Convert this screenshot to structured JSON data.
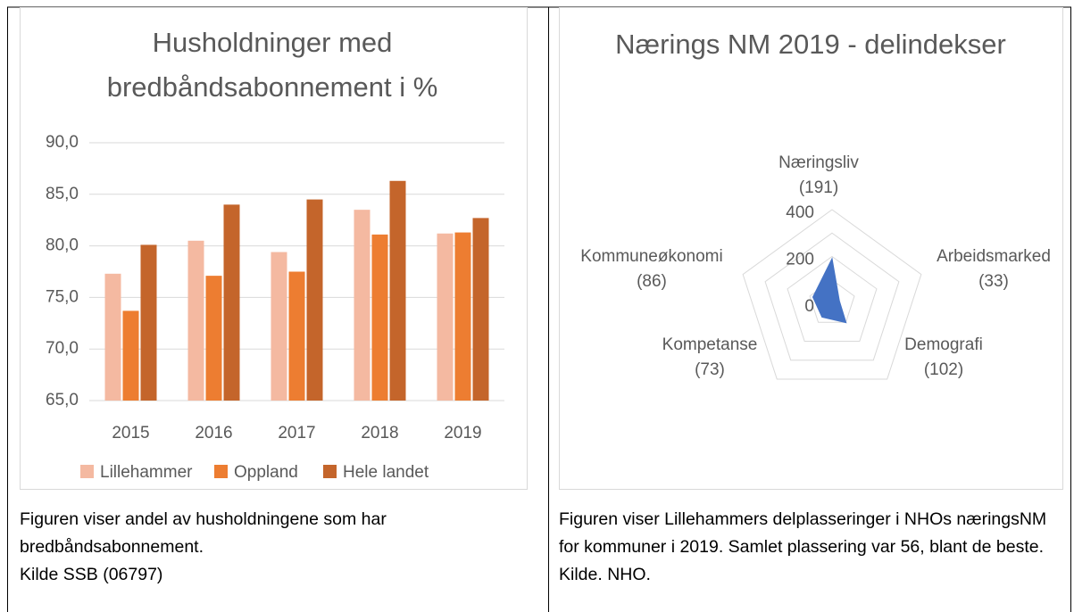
{
  "chart_data": [
    {
      "type": "bar",
      "title": "Husholdninger med bredbåndsabonnement i %",
      "categories": [
        "2015",
        "2016",
        "2017",
        "2018",
        "2019"
      ],
      "series": [
        {
          "name": "Lillehammer",
          "color": "#f4b9a1",
          "values": [
            77.3,
            80.5,
            79.4,
            83.5,
            81.2
          ]
        },
        {
          "name": "Oppland",
          "color": "#ed7d31",
          "values": [
            73.7,
            77.1,
            77.5,
            81.1,
            81.3
          ]
        },
        {
          "name": "Hele landet",
          "color": "#c4652b",
          "values": [
            80.1,
            84.0,
            84.5,
            86.3,
            82.7
          ]
        }
      ],
      "ylim": [
        65,
        90
      ],
      "yticks": [
        {
          "value": 65,
          "label": "65,0"
        },
        {
          "value": 70,
          "label": "70,0"
        },
        {
          "value": 75,
          "label": "75,0"
        },
        {
          "value": 80,
          "label": "80,0"
        },
        {
          "value": 85,
          "label": "85,0"
        },
        {
          "value": 90,
          "label": "90,0"
        }
      ],
      "grid": true,
      "legend": "bottom"
    },
    {
      "type": "radar",
      "title": "Nærings NM 2019 - delindekser",
      "categories": [
        "Næringsliv",
        "Arbeidsmarked",
        "Demografi",
        "Kompetanse",
        "Kommuneøkonomi"
      ],
      "values": [
        191,
        33,
        102,
        73,
        86
      ],
      "value_labels": [
        "(191)",
        "(33)",
        "(102)",
        "(73)",
        "(86)"
      ],
      "color": "#4472c4",
      "rlim": [
        0,
        400
      ],
      "rticks": [
        0,
        200,
        400
      ],
      "minor_rticks": [
        100,
        300
      ],
      "grid": true
    }
  ],
  "captions": [
    {
      "text": "Figuren viser andel av husholdningene som har bredbåndsabonnement.",
      "source": "Kilde SSB (06797)"
    },
    {
      "text": "Figuren viser Lillehammers delplasseringer i NHOs næringsNM for kommuner i 2019. Samlet plassering var 56, blant de beste.",
      "source": "Kilde. NHO."
    }
  ]
}
